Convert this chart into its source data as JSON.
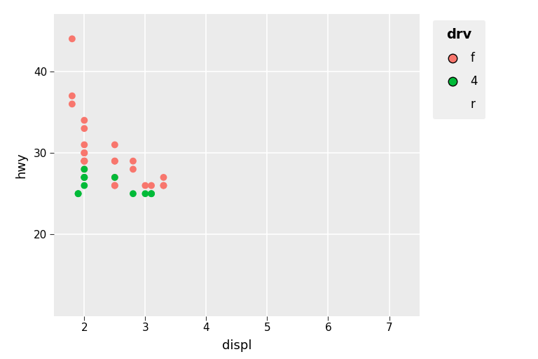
{
  "xlabel": "displ",
  "ylabel": "hwy",
  "legend_title": "drv",
  "xlim": [
    1.5,
    7.5
  ],
  "ylim": [
    10,
    47
  ],
  "xticks": [
    2,
    3,
    4,
    5,
    6,
    7
  ],
  "yticks": [
    20,
    30,
    40
  ],
  "plot_bg_color": "#EBEBEB",
  "fig_bg_color": "#FFFFFF",
  "grid_color": "#FFFFFF",
  "legend_bg": "#EBEBEB",
  "colors": {
    "f": "#F8766D",
    "4": "#00BA38",
    "r": "#619CFF"
  },
  "legend_order": [
    "f",
    "4",
    "r"
  ],
  "points_f": [
    [
      1.8,
      44
    ],
    [
      1.8,
      36
    ],
    [
      1.8,
      37
    ],
    [
      2.0,
      34
    ],
    [
      2.0,
      29
    ],
    [
      2.0,
      33
    ],
    [
      2.0,
      29
    ],
    [
      2.0,
      30
    ],
    [
      2.0,
      31
    ],
    [
      2.0,
      28
    ],
    [
      2.0,
      29
    ],
    [
      2.0,
      30
    ],
    [
      2.0,
      29
    ],
    [
      2.0,
      27
    ],
    [
      2.5,
      26
    ],
    [
      2.5,
      26
    ],
    [
      2.5,
      27
    ],
    [
      2.5,
      29
    ],
    [
      2.5,
      31
    ],
    [
      2.5,
      29
    ],
    [
      2.8,
      29
    ],
    [
      2.8,
      28
    ],
    [
      3.0,
      26
    ],
    [
      3.1,
      26
    ],
    [
      3.3,
      27
    ],
    [
      3.3,
      26
    ],
    [
      3.3,
      26
    ]
  ],
  "points_4": [
    [
      1.9,
      25
    ],
    [
      1.9,
      25
    ],
    [
      2.0,
      26
    ],
    [
      2.0,
      27
    ],
    [
      2.0,
      27
    ],
    [
      2.0,
      28
    ],
    [
      2.5,
      27
    ],
    [
      2.8,
      25
    ],
    [
      3.0,
      25
    ],
    [
      3.1,
      25
    ],
    [
      3.1,
      25
    ]
  ],
  "marker_size": 50,
  "tick_labelsize": 11,
  "axis_labelsize": 13,
  "legend_title_fontsize": 14,
  "legend_fontsize": 12
}
